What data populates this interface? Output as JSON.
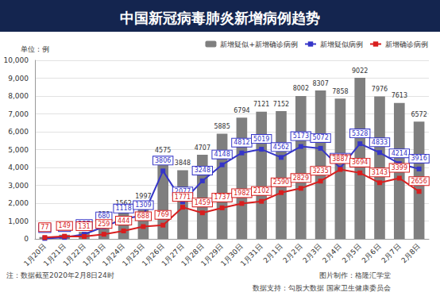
{
  "chart_data": {
    "type": "bar",
    "title": "中国新冠病毒肺炎新增病例趋势",
    "ylabel": "单位：例",
    "categories": [
      "1月20日",
      "1月21日",
      "1月22日",
      "1月23日",
      "1月24日",
      "1月25日",
      "1月26日",
      "1月27日",
      "1月28日",
      "1月29日",
      "1月30日",
      "1月31日",
      "2月1日",
      "2月2日",
      "2月3日",
      "2月4日",
      "2月5日",
      "2月6日",
      "2月7日",
      "2月8日"
    ],
    "series": [
      {
        "name": "新增疑似+新增确诊病例",
        "type": "bar",
        "color": "#7f7f7f",
        "values": [
          104,
          231,
          388,
          939,
          1562,
          1997,
          4575,
          3848,
          4707,
          5885,
          6794,
          7121,
          7152,
          8002,
          8307,
          7858,
          9022,
          7976,
          7613,
          6572
        ]
      },
      {
        "name": "新增疑似病例",
        "type": "line",
        "color": "#3535c8",
        "marker": "square",
        "values": [
          27,
          82,
          257,
          680,
          1118,
          1309,
          3806,
          2077,
          3248,
          4148,
          4812,
          5019,
          4562,
          5173,
          5072,
          3971,
          5328,
          4833,
          4214,
          3916
        ]
      },
      {
        "name": "新增确诊病例",
        "type": "line",
        "color": "#d81e1e",
        "marker": "square",
        "values": [
          77,
          149,
          131,
          259,
          444,
          688,
          769,
          1771,
          1459,
          1737,
          1982,
          2102,
          2590,
          2829,
          3235,
          3887,
          3694,
          3143,
          3399,
          2656
        ]
      }
    ],
    "ylim": [
      0,
      10000
    ],
    "yticks": [
      0,
      1000,
      2000,
      3000,
      4000,
      5000,
      6000,
      7000,
      8000,
      9000,
      10000
    ],
    "grid": true,
    "legend": "top-right",
    "data_labels": true,
    "annotations": [
      "注：数据截至2020年2月8日24时",
      "图片制作：格隆汇学堂",
      "数据支持：勾股大数据 国家卫生健康委员会"
    ]
  }
}
